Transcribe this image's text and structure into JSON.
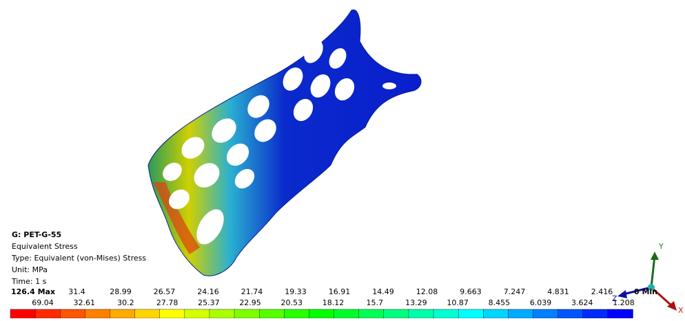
{
  "info": {
    "title": "G: PET-G-55",
    "lines": [
      "Equivalent Stress",
      "Type: Equivalent (von-Mises) Stress",
      "Unit: MPa",
      "Time: 1 s"
    ]
  },
  "legend": {
    "top_labels": [
      "126.4 Max",
      "31.4",
      "28.99",
      "26.57",
      "24.16",
      "21.74",
      "19.33",
      "16.91",
      "14.49",
      "12.08",
      "9.663",
      "7.247",
      "4.831",
      "2.416",
      "0 Min"
    ],
    "bottom_labels": [
      "69.04",
      "32.61",
      "30.2",
      "27.78",
      "25.37",
      "22.95",
      "20.53",
      "18.12",
      "15.7",
      "13.29",
      "10.87",
      "8.455",
      "6.039",
      "3.624",
      "1.208"
    ],
    "colors": [
      "#ff0000",
      "#ff2a00",
      "#ff5500",
      "#ff8000",
      "#ffaa00",
      "#ffd500",
      "#ffff00",
      "#d5ff00",
      "#aaff00",
      "#80ff00",
      "#55ff00",
      "#2aff00",
      "#00ff00",
      "#00ff2a",
      "#00ff55",
      "#00ff80",
      "#00ffaa",
      "#00ffd5",
      "#00ffff",
      "#00d5ff",
      "#00aaff",
      "#0080ff",
      "#0055ff",
      "#002aff",
      "#0000ff"
    ]
  },
  "triad": {
    "y": "Y",
    "z": "Z",
    "x": "X"
  }
}
